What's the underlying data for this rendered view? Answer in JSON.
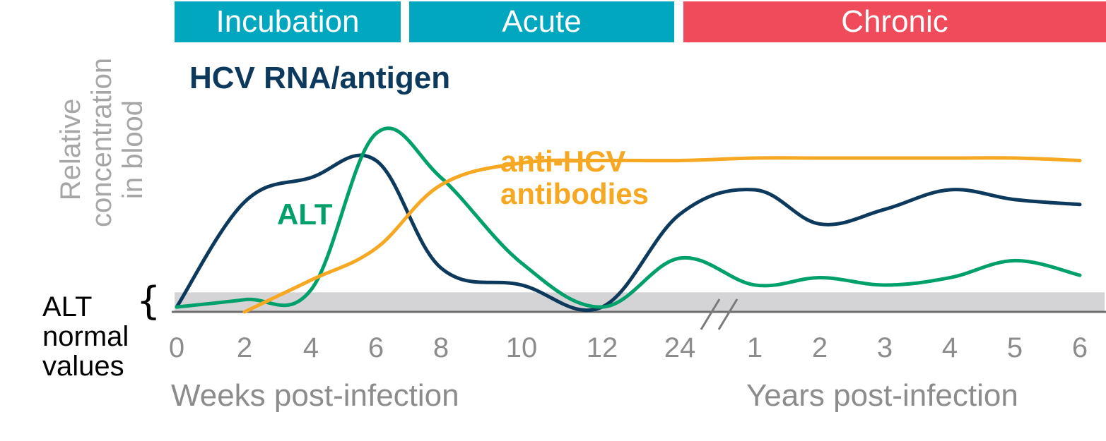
{
  "phases": [
    {
      "label": "Incubation",
      "color": "#00a7be"
    },
    {
      "label": "Acute",
      "color": "#00a7be"
    },
    {
      "label": "Chronic",
      "color": "#ef4b5a"
    }
  ],
  "y_axis_label_lines": [
    "Relative",
    "concentration",
    "in blood"
  ],
  "alt_normal_lines": [
    "ALT",
    "normal",
    "values"
  ],
  "x_titles": {
    "weeks": "Weeks post-infection",
    "years": "Years post-infection"
  },
  "chart_data": {
    "type": "line",
    "x_ticks": [
      "0",
      "2",
      "4",
      "6",
      "8",
      "10",
      "12",
      "24",
      "1",
      "2",
      "3",
      "4",
      "5",
      "6"
    ],
    "normal_band": [
      0,
      0.08
    ],
    "ylim": [
      0,
      1
    ],
    "series": [
      {
        "name": "HCV RNA/antigen",
        "color": "#0d3a5c",
        "points": [
          [
            0,
            0.02
          ],
          [
            1,
            0.45
          ],
          [
            2,
            0.55
          ],
          [
            3,
            0.62
          ],
          [
            4,
            0.18
          ],
          [
            5,
            0.11
          ],
          [
            6,
            0.02
          ],
          [
            7,
            0.4
          ],
          [
            8,
            0.5
          ],
          [
            9,
            0.36
          ],
          [
            10,
            0.42
          ],
          [
            11,
            0.5
          ],
          [
            12,
            0.46
          ],
          [
            13,
            0.44
          ]
        ]
      },
      {
        "name": "ALT",
        "color": "#00a06b",
        "points": [
          [
            0,
            0.02
          ],
          [
            1,
            0.05
          ],
          [
            2,
            0.09
          ],
          [
            3,
            0.73
          ],
          [
            4,
            0.55
          ],
          [
            5,
            0.2
          ],
          [
            6,
            0.02
          ],
          [
            7,
            0.22
          ],
          [
            8,
            0.11
          ],
          [
            9,
            0.14
          ],
          [
            10,
            0.11
          ],
          [
            11,
            0.14
          ],
          [
            12,
            0.21
          ],
          [
            13,
            0.15
          ]
        ]
      },
      {
        "name": "anti-HCV antibodies",
        "color": "#f7a823",
        "points": [
          [
            1,
            0.0
          ],
          [
            2,
            0.13
          ],
          [
            3,
            0.26
          ],
          [
            4,
            0.52
          ],
          [
            5,
            0.61
          ],
          [
            6,
            0.62
          ],
          [
            7,
            0.62
          ],
          [
            8,
            0.63
          ],
          [
            9,
            0.63
          ],
          [
            10,
            0.63
          ],
          [
            11,
            0.63
          ],
          [
            12,
            0.63
          ],
          [
            13,
            0.62
          ]
        ]
      }
    ],
    "series_label_lines": {
      "hcv": [
        "HCV RNA/antigen"
      ],
      "alt": [
        "ALT"
      ],
      "anti": [
        "anti-HCV",
        "antibodies"
      ]
    }
  }
}
